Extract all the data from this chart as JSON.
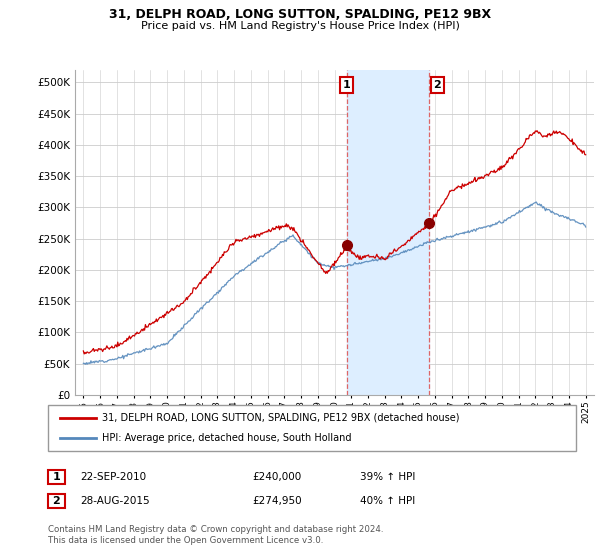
{
  "title1": "31, DELPH ROAD, LONG SUTTON, SPALDING, PE12 9BX",
  "title2": "Price paid vs. HM Land Registry's House Price Index (HPI)",
  "legend_line1": "31, DELPH ROAD, LONG SUTTON, SPALDING, PE12 9BX (detached house)",
  "legend_line2": "HPI: Average price, detached house, South Holland",
  "sale1_label": "1",
  "sale1_date": "22-SEP-2010",
  "sale1_price": "£240,000",
  "sale1_hpi": "39% ↑ HPI",
  "sale2_label": "2",
  "sale2_date": "28-AUG-2015",
  "sale2_price": "£274,950",
  "sale2_hpi": "40% ↑ HPI",
  "footnote": "Contains HM Land Registry data © Crown copyright and database right 2024.\nThis data is licensed under the Open Government Licence v3.0.",
  "sale1_year": 2010.72,
  "sale1_value": 240000,
  "sale2_year": 2015.65,
  "sale2_value": 274950,
  "red_line_color": "#cc0000",
  "blue_line_color": "#5588bb",
  "highlight_color": "#ddeeff",
  "vline_color": "#dd6666",
  "grid_color": "#cccccc",
  "background_color": "#ffffff",
  "ylim_min": 0,
  "ylim_max": 520000,
  "xlim_min": 1994.5,
  "xlim_max": 2025.5
}
